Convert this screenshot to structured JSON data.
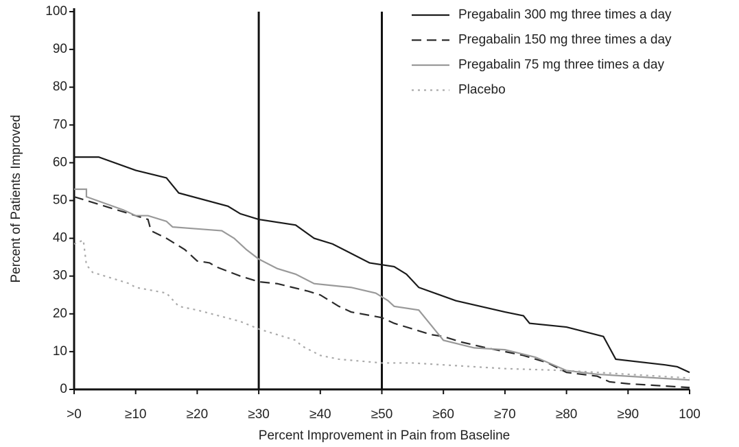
{
  "chart_data": {
    "type": "line",
    "xlabel": "Percent Improvement in Pain from Baseline",
    "ylabel": "Percent of Patients Improved",
    "xlim": [
      0,
      100
    ],
    "ylim": [
      0,
      100
    ],
    "xticks": [
      {
        "value": 0,
        "label": ">0"
      },
      {
        "value": 10,
        "label": "≥10"
      },
      {
        "value": 20,
        "label": "≥20"
      },
      {
        "value": 30,
        "label": "≥30"
      },
      {
        "value": 40,
        "label": "≥40"
      },
      {
        "value": 50,
        "label": "≥50"
      },
      {
        "value": 60,
        "label": "≥60"
      },
      {
        "value": 70,
        "label": "≥70"
      },
      {
        "value": 80,
        "label": "≥80"
      },
      {
        "value": 90,
        "label": "≥90"
      },
      100
    ],
    "yticks": [
      0,
      10,
      20,
      30,
      40,
      50,
      60,
      70,
      80,
      90,
      100
    ],
    "reference_lines": [
      30,
      50
    ],
    "legend": "top-right",
    "series": [
      {
        "name": "Pregabalin 300 mg three times a day",
        "color": "#1a1a1a",
        "dash": "solid",
        "x": [
          0,
          4,
          10,
          15,
          17,
          25,
          27,
          30,
          36,
          39,
          42,
          45,
          48,
          52,
          54,
          56,
          62,
          66,
          70,
          73,
          74,
          80,
          86,
          87,
          88,
          96,
          98,
          100
        ],
        "values": [
          61.5,
          61.5,
          58,
          56,
          52,
          48.5,
          46.5,
          45,
          43.5,
          40,
          38.5,
          36,
          33.5,
          32.5,
          30.5,
          27,
          23.5,
          22,
          20.5,
          19.5,
          17.5,
          16.5,
          14,
          11,
          8,
          6.5,
          6,
          4.5
        ]
      },
      {
        "name": "Pregabalin 150 mg three times a day",
        "color": "#2a2a2a",
        "dash": "dashed",
        "x": [
          0,
          4,
          12,
          12.5,
          15,
          18,
          20,
          22,
          23,
          27,
          30,
          33,
          38,
          40,
          43,
          45,
          50,
          52,
          55,
          58,
          60,
          63,
          67,
          73,
          77,
          80,
          85,
          87,
          90,
          95,
          100
        ],
        "values": [
          51,
          49,
          45,
          42,
          40,
          37,
          34,
          33.5,
          32.5,
          30,
          28.5,
          28,
          26,
          25,
          22,
          20.5,
          19,
          17.5,
          16,
          14.5,
          14,
          12.5,
          11,
          9,
          7,
          4.5,
          3.5,
          2,
          1.5,
          1,
          0.5
        ]
      },
      {
        "name": "Pregabalin 75 mg three times a day",
        "color": "#999999",
        "dash": "solid",
        "x": [
          0,
          2,
          2,
          8,
          10,
          12,
          15,
          16,
          20,
          24,
          26,
          28,
          30,
          33,
          36,
          39,
          42,
          45,
          49,
          51,
          52,
          56,
          58,
          60,
          65,
          70,
          75,
          80,
          85,
          90,
          95,
          100
        ],
        "values": [
          53,
          53,
          51,
          47.5,
          46,
          46,
          44.5,
          43,
          42.5,
          42,
          40,
          37,
          34.5,
          32,
          30.5,
          28,
          27.5,
          27,
          25.5,
          23.5,
          22,
          21,
          17,
          13,
          11,
          10.5,
          8.5,
          5,
          4,
          3.5,
          3,
          2.5
        ]
      },
      {
        "name": "Placebo",
        "color": "#aaaaaa",
        "dash": "dotted",
        "x": [
          0,
          1.5,
          2,
          3,
          5,
          9,
          10,
          15,
          17,
          20,
          27,
          30,
          33,
          36,
          37,
          40,
          43,
          50,
          55,
          60,
          70,
          80,
          90,
          100
        ],
        "values": [
          38.5,
          39.5,
          33,
          31,
          30,
          28,
          27,
          25.5,
          22,
          21,
          18,
          16,
          14.5,
          13,
          11.5,
          9,
          8,
          7,
          7,
          6.5,
          5.5,
          5,
          4,
          3
        ]
      }
    ]
  }
}
